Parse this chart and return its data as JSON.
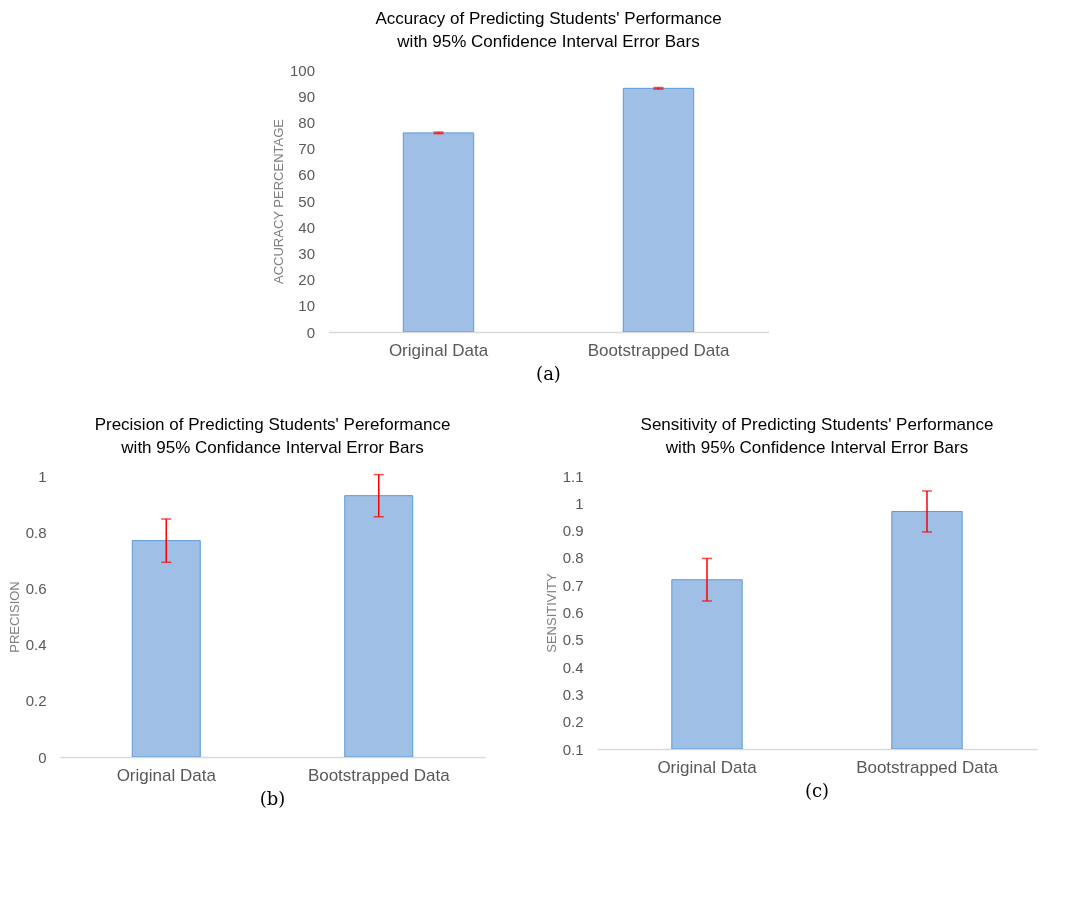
{
  "chart_data": [
    {
      "type": "bar",
      "title": "Accuracy of Predicting Students' Performance\nwith 95% Confidence Interval Error Bars",
      "ylabel": "ACCURACY PERCENTAGE",
      "categories": [
        "Original Data",
        "Bootstrapped Data"
      ],
      "values": [
        76,
        93
      ],
      "errors": [
        0.3,
        0.3
      ],
      "color": "#a0bfe6",
      "ylim": [
        0,
        100
      ],
      "yticks": [
        0,
        10,
        20,
        30,
        40,
        50,
        60,
        70,
        80,
        90,
        100
      ],
      "annotations": [
        "(a)"
      ]
    },
    {
      "type": "bar",
      "title": "Precision of Predicting Students' Pereformance\nwith 95% Confidance Interval Error Bars",
      "ylabel": "PRECISION",
      "categories": [
        "Original Data",
        "Bootstrapped Data"
      ],
      "values": [
        0.77,
        0.93
      ],
      "errors": [
        0.077,
        0.075
      ],
      "color": "#a0bfe6",
      "ylim": [
        0,
        1
      ],
      "yticks": [
        0,
        0.2,
        0.4,
        0.6,
        0.8,
        1
      ],
      "annotations": [
        "(b)"
      ]
    },
    {
      "type": "bar",
      "title": "Sensitivity of Predicting Students' Performance\nwith 95% Confidence Interval Error Bars",
      "ylabel": "SENSITIVITY",
      "categories": [
        "Original Data",
        "Bootstrapped Data"
      ],
      "values": [
        0.72,
        0.97
      ],
      "errors": [
        0.078,
        0.075
      ],
      "color": "#a0bfe6",
      "ylim": [
        0.1,
        1.1
      ],
      "yticks": [
        0.1,
        0.2,
        0.3,
        0.4,
        0.5,
        0.6,
        0.7,
        0.8,
        0.9,
        1,
        1.1
      ],
      "annotations": [
        "(c)"
      ]
    }
  ]
}
